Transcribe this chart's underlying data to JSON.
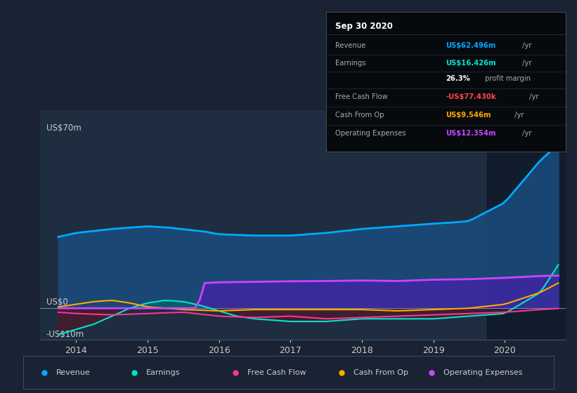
{
  "bg_color": "#1a2333",
  "plot_bg_color": "#1e2d40",
  "grid_color": "#2a3d55",
  "title_label": "US$70m",
  "zero_label": "US$0",
  "neg_label": "-US$10m",
  "x_ticks": [
    2014,
    2015,
    2016,
    2017,
    2018,
    2019,
    2020
  ],
  "ylim": [
    -12,
    75
  ],
  "xlim_start": 2013.5,
  "xlim_end": 2020.85,
  "revenue_color": "#00aaff",
  "earnings_color": "#00e5cc",
  "fcf_color": "#ff3399",
  "cashfromop_color": "#ffaa00",
  "opex_color": "#cc44ff",
  "revenue_fill": "#1a4a7a",
  "earnings_pos_fill": "#006666",
  "earnings_neg_fill": "#4a1a2a",
  "opex_fill": "#4422aa",
  "info_title": "Sep 30 2020",
  "info_revenue_label": "Revenue",
  "info_revenue_value": "US$62.496m /yr",
  "info_revenue_color": "#00aaff",
  "info_earnings_label": "Earnings",
  "info_earnings_value": "US$16.426m /yr",
  "info_earnings_color": "#00e5cc",
  "info_margin_value": "26.3%",
  "info_margin_suffix": " profit margin",
  "info_fcf_label": "Free Cash Flow",
  "info_fcf_value": "-US$77.430k /yr",
  "info_fcf_color": "#ff4444",
  "info_cashop_label": "Cash From Op",
  "info_cashop_value": "US$9.546m /yr",
  "info_cashop_color": "#ffaa00",
  "info_opex_label": "Operating Expenses",
  "info_opex_value": "US$12.354m /yr",
  "info_opex_color": "#cc44ff",
  "legend_items": [
    {
      "label": "Revenue",
      "color": "#00aaff"
    },
    {
      "label": "Earnings",
      "color": "#00e5cc"
    },
    {
      "label": "Free Cash Flow",
      "color": "#ff3399"
    },
    {
      "label": "Cash From Op",
      "color": "#ffaa00"
    },
    {
      "label": "Operating Expenses",
      "color": "#cc44ff"
    }
  ],
  "highlight_rect_x": 2019.75,
  "label_color": "#cccccc",
  "spine_color": "#445566"
}
